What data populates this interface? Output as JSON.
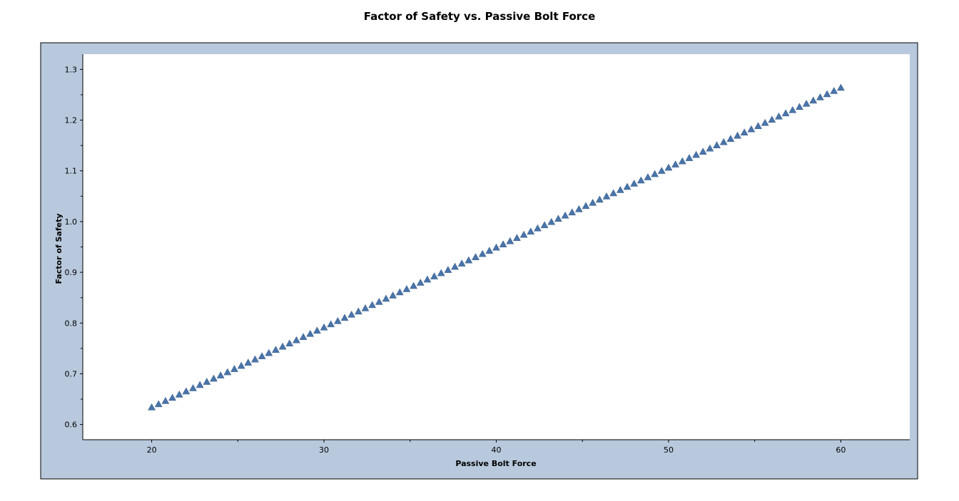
{
  "chart_data": {
    "type": "scatter",
    "title": "Factor of Safety vs. Passive Bolt Force",
    "xlabel": "Passive Bolt Force",
    "ylabel": "Factor of Safety",
    "xlim": [
      16,
      64
    ],
    "ylim": [
      0.57,
      1.33
    ],
    "x_ticks": [
      20,
      30,
      40,
      50,
      60
    ],
    "x_tick_labels": [
      "20",
      "30",
      "40",
      "50",
      "60"
    ],
    "y_ticks": [
      0.6,
      0.7,
      0.8,
      0.9,
      1.0,
      1.1,
      1.2,
      1.3
    ],
    "y_tick_labels": [
      "0.6",
      "0.7",
      "0.8",
      "0.9",
      "1.0",
      "1.1",
      "1.2",
      "1.3"
    ],
    "grid": false,
    "marker": "triangle",
    "colors": {
      "frame": "#b8c9dd",
      "plot_bg": "#ffffff",
      "marker": "#4a74a8"
    },
    "series": [
      {
        "x": [
          20.0,
          20.4,
          20.8,
          21.2,
          21.6,
          22.0,
          22.4,
          22.8,
          23.2,
          23.6,
          24.0,
          24.4,
          24.8,
          25.2,
          25.6,
          26.0,
          26.4,
          26.8,
          27.2,
          27.6,
          28.0,
          28.4,
          28.8,
          29.2,
          29.6,
          30.0,
          30.4,
          30.8,
          31.2,
          31.6,
          32.0,
          32.4,
          32.8,
          33.2,
          33.6,
          34.0,
          34.4,
          34.8,
          35.2,
          35.6,
          36.0,
          36.4,
          36.8,
          37.2,
          37.6,
          38.0,
          38.4,
          38.8,
          39.2,
          39.6,
          40.0,
          40.4,
          40.8,
          41.2,
          41.6,
          42.0,
          42.4,
          42.8,
          43.2,
          43.6,
          44.0,
          44.4,
          44.8,
          45.2,
          45.6,
          46.0,
          46.4,
          46.8,
          47.2,
          47.6,
          48.0,
          48.4,
          48.8,
          49.2,
          49.6,
          50.0,
          50.4,
          50.8,
          51.2,
          51.6,
          52.0,
          52.4,
          52.8,
          53.2,
          53.6,
          54.0,
          54.4,
          54.8,
          55.2,
          55.6,
          56.0,
          56.4,
          56.8,
          57.2,
          57.6,
          58.0,
          58.4,
          58.8,
          59.2,
          59.6,
          60.0
        ],
        "y": [
          0.634,
          0.6403,
          0.6466,
          0.6529,
          0.6592,
          0.6655,
          0.6718,
          0.6781,
          0.6844,
          0.6907,
          0.697,
          0.7033,
          0.7096,
          0.7159,
          0.7222,
          0.7285,
          0.7348,
          0.7411,
          0.7474,
          0.7537,
          0.76,
          0.7663,
          0.7726,
          0.7789,
          0.7852,
          0.7915,
          0.7978,
          0.8041,
          0.8104,
          0.8167,
          0.823,
          0.8293,
          0.8356,
          0.8419,
          0.8482,
          0.8545,
          0.8608,
          0.8671,
          0.8734,
          0.8797,
          0.886,
          0.8923,
          0.8986,
          0.9049,
          0.9112,
          0.9175,
          0.9238,
          0.9301,
          0.9364,
          0.9427,
          0.949,
          0.9553,
          0.9616,
          0.9679,
          0.9742,
          0.9805,
          0.9868,
          0.9931,
          0.9994,
          1.0057,
          1.012,
          1.0183,
          1.0246,
          1.0309,
          1.0372,
          1.0435,
          1.0498,
          1.0561,
          1.0624,
          1.0687,
          1.075,
          1.0813,
          1.0876,
          1.0939,
          1.1002,
          1.1065,
          1.1128,
          1.1191,
          1.1254,
          1.1317,
          1.138,
          1.1443,
          1.1506,
          1.1569,
          1.1632,
          1.1695,
          1.1758,
          1.1821,
          1.1884,
          1.1947,
          1.201,
          1.2073,
          1.2136,
          1.2199,
          1.2262,
          1.2325,
          1.2388,
          1.2451,
          1.2514,
          1.2577,
          1.264
        ]
      }
    ]
  }
}
